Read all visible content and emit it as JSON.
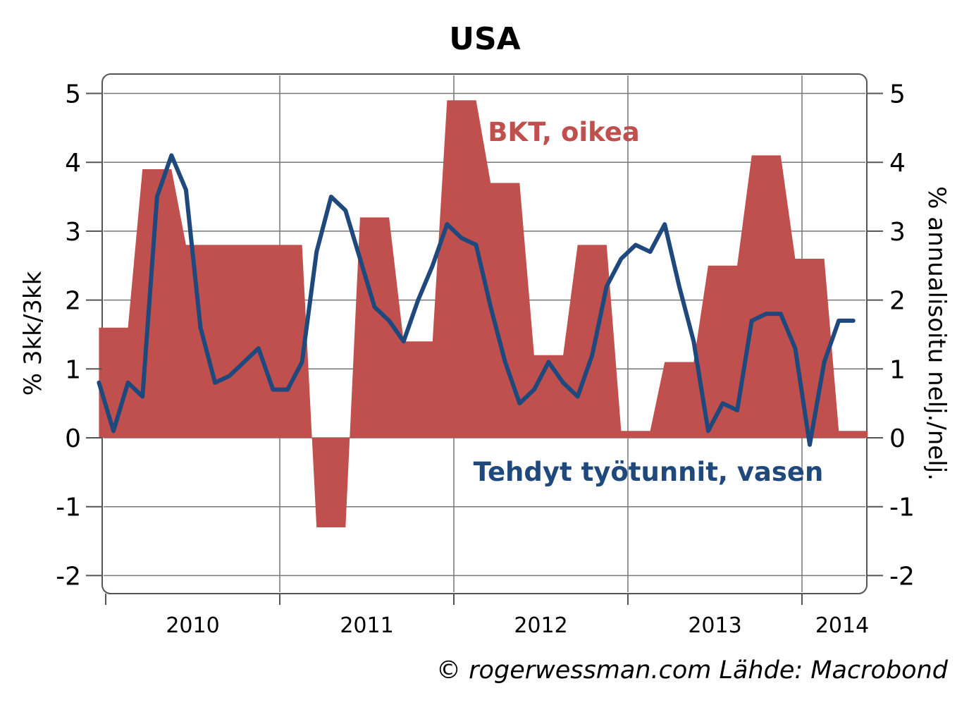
{
  "chart_data": {
    "type": "bar+line",
    "title": "USA",
    "ylabel_left": "% 3kk/3kk",
    "ylabel_right": "% annualisoitu nelj./nelj.",
    "ylim": [
      -2.3,
      5.3
    ],
    "y_ticks": [
      -2,
      -1,
      0,
      1,
      2,
      3,
      4,
      5
    ],
    "x_ticks": [
      "2010",
      "2011",
      "2012",
      "2013",
      "2014"
    ],
    "grid": true,
    "source": "© rogerwessman.com Lähde: Macrobond",
    "series": [
      {
        "name": "BKT, oikea",
        "type": "area-step",
        "axis": "right",
        "color": "#c0504d",
        "quarters": [
          "2009Q4",
          "2010Q1",
          "2010Q2",
          "2010Q3",
          "2010Q4",
          "2011Q1",
          "2011Q2",
          "2011Q3",
          "2011Q4",
          "2012Q1",
          "2012Q2",
          "2012Q3",
          "2012Q4",
          "2013Q1",
          "2013Q2",
          "2013Q3",
          "2013Q4",
          "2014Q1"
        ],
        "values": [
          1.6,
          3.9,
          2.8,
          2.8,
          2.8,
          -1.3,
          3.2,
          1.4,
          4.9,
          3.7,
          1.2,
          2.8,
          0.1,
          1.1,
          2.5,
          4.1,
          2.6,
          0.1
        ]
      },
      {
        "name": "Tehdyt työtunnit, vasen",
        "type": "line",
        "axis": "left",
        "color": "#1f497d",
        "x": [
          "2009-12",
          "2010-01",
          "2010-02",
          "2010-03",
          "2010-04",
          "2010-05",
          "2010-06",
          "2010-07",
          "2010-08",
          "2010-09",
          "2010-10",
          "2010-11",
          "2010-12",
          "2011-01",
          "2011-02",
          "2011-03",
          "2011-04",
          "2011-05",
          "2011-06",
          "2011-07",
          "2011-08",
          "2011-09",
          "2011-10",
          "2011-11",
          "2011-12",
          "2012-01",
          "2012-02",
          "2012-03",
          "2012-04",
          "2012-05",
          "2012-06",
          "2012-07",
          "2012-08",
          "2012-09",
          "2012-10",
          "2012-11",
          "2012-12",
          "2013-01",
          "2013-02",
          "2013-03",
          "2013-04",
          "2013-05",
          "2013-06",
          "2013-07",
          "2013-08",
          "2013-09",
          "2013-10",
          "2013-11",
          "2013-12",
          "2014-01",
          "2014-02",
          "2014-03",
          "2014-04"
        ],
        "values": [
          0.8,
          0.1,
          0.8,
          0.6,
          3.5,
          4.1,
          3.6,
          1.6,
          0.8,
          0.9,
          1.1,
          1.3,
          0.7,
          0.7,
          1.1,
          2.7,
          3.5,
          3.3,
          2.6,
          1.9,
          1.7,
          1.4,
          2.0,
          2.5,
          3.1,
          2.9,
          2.8,
          1.9,
          1.1,
          0.5,
          0.7,
          1.1,
          0.8,
          0.6,
          1.2,
          2.2,
          2.6,
          2.8,
          2.7,
          3.1,
          2.2,
          1.4,
          0.1,
          0.5,
          0.4,
          1.7,
          1.8,
          1.8,
          1.3,
          -0.1,
          1.1,
          1.7,
          1.7
        ]
      }
    ]
  }
}
